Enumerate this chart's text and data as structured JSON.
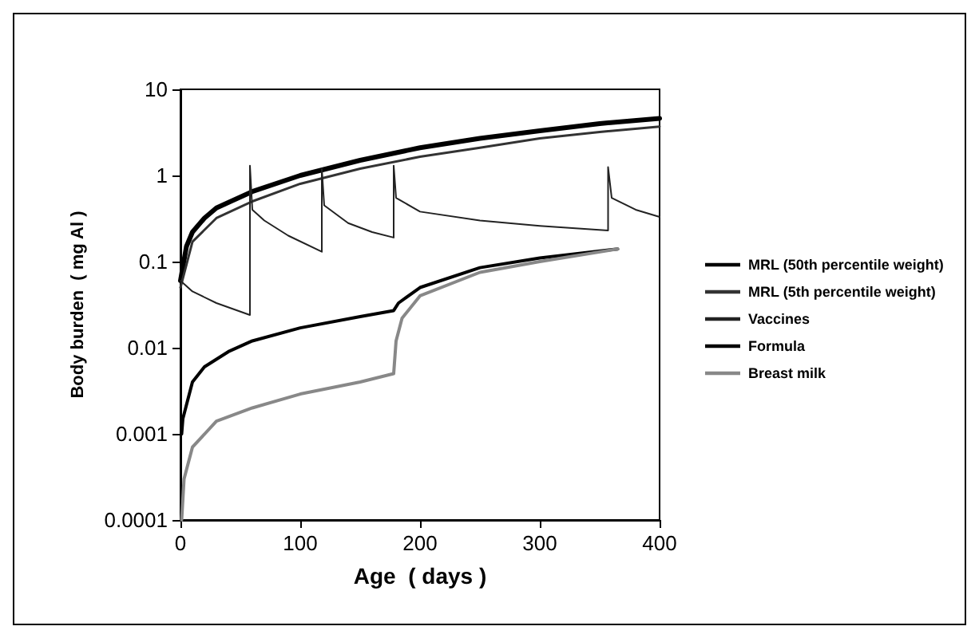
{
  "chart_data": {
    "type": "line",
    "xlabel": "Age  ( days )",
    "ylabel": "Body burden  ( mg Al )",
    "log": "y",
    "xlim": [
      0,
      400
    ],
    "xticks": [
      0,
      100,
      200,
      300,
      400
    ],
    "ylim": [
      0.0001,
      10
    ],
    "yticks": [
      0.0001,
      0.001,
      0.01,
      0.1,
      1,
      10
    ],
    "grid": false,
    "legend": "right",
    "marker": "none",
    "line_style": "solid",
    "series": [
      {
        "name": "MRL (50th percentile weight)",
        "color": "#000000",
        "x": [
          0,
          5,
          10,
          20,
          30,
          60,
          100,
          150,
          200,
          250,
          300,
          350,
          400
        ],
        "values": [
          0.06,
          0.15,
          0.22,
          0.32,
          0.42,
          0.65,
          1.0,
          1.5,
          2.1,
          2.7,
          3.3,
          4.0,
          4.6
        ]
      },
      {
        "name": "MRL (5th percentile weight)",
        "color": "#333333",
        "x": [
          0,
          10,
          30,
          60,
          100,
          150,
          200,
          250,
          300,
          350,
          400
        ],
        "values": [
          0.05,
          0.17,
          0.32,
          0.5,
          0.8,
          1.2,
          1.65,
          2.1,
          2.7,
          3.2,
          3.7
        ]
      },
      {
        "name": "Vaccines",
        "color": "#222222",
        "x": [
          0,
          10,
          30,
          58,
          58,
          60,
          70,
          90,
          118,
          118,
          120,
          140,
          160,
          178,
          178,
          180,
          200,
          250,
          300,
          357,
          357,
          360,
          380,
          400
        ],
        "values": [
          0.06,
          0.045,
          0.033,
          0.024,
          1.3,
          0.4,
          0.3,
          0.2,
          0.13,
          1.2,
          0.45,
          0.28,
          0.22,
          0.19,
          1.3,
          0.55,
          0.38,
          0.3,
          0.26,
          0.23,
          1.25,
          0.55,
          0.4,
          0.33
        ]
      },
      {
        "name": "Formula",
        "color": "#000000",
        "x": [
          1,
          2,
          10,
          20,
          40,
          60,
          100,
          150,
          178,
          182,
          200,
          250,
          300,
          365
        ],
        "values": [
          0.001,
          0.0015,
          0.004,
          0.006,
          0.009,
          0.012,
          0.017,
          0.023,
          0.027,
          0.033,
          0.05,
          0.085,
          0.11,
          0.14
        ]
      },
      {
        "name": "Breast milk",
        "color": "#888888",
        "x": [
          1,
          3,
          10,
          30,
          60,
          100,
          150,
          178,
          180,
          185,
          200,
          250,
          300,
          365
        ],
        "values": [
          0.0001,
          0.0003,
          0.0007,
          0.0014,
          0.002,
          0.0029,
          0.004,
          0.005,
          0.012,
          0.022,
          0.04,
          0.075,
          0.1,
          0.14
        ]
      }
    ]
  }
}
